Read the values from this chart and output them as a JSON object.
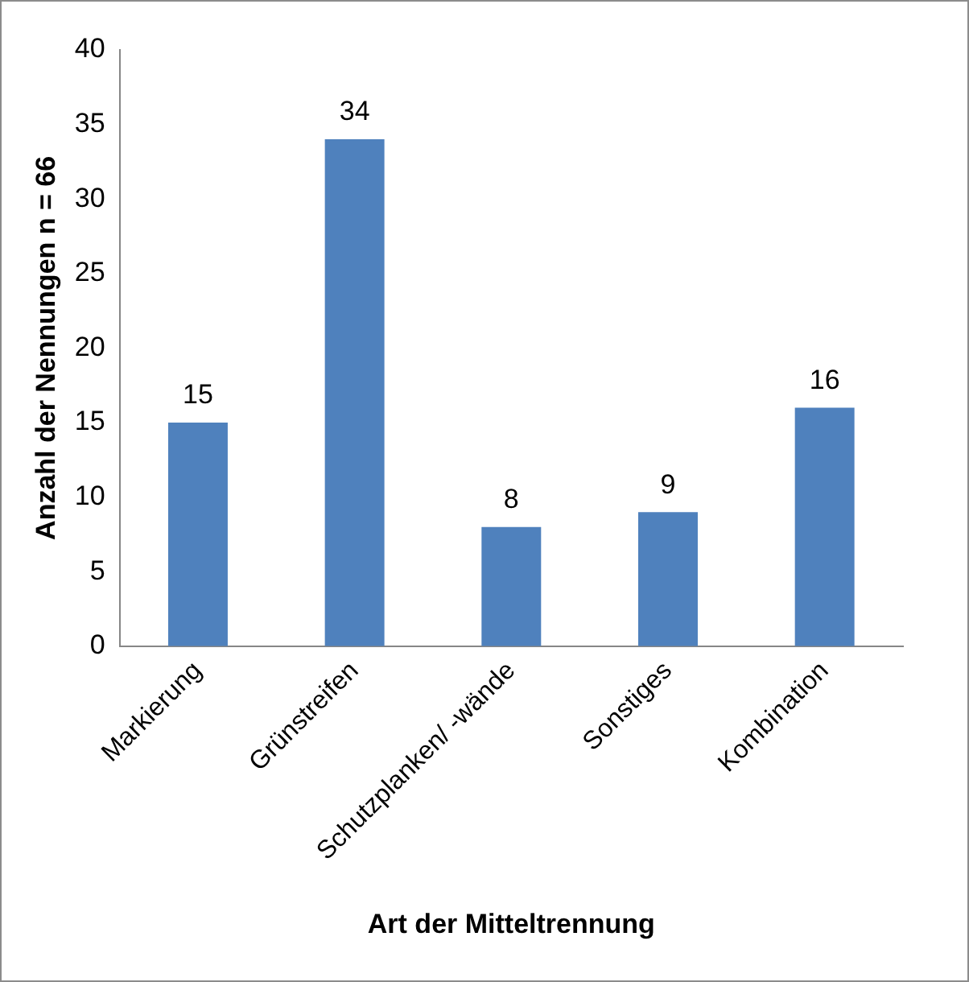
{
  "chart_data": {
    "type": "bar",
    "xlabel": "Art der Mitteltrennung",
    "ylabel": "Anzahl der Nennungen n = 66",
    "categories": [
      "Markierung",
      "Grünstreifen",
      "Schutzplanken/ -wände",
      "Sonstiges",
      "Kombination"
    ],
    "values": [
      15,
      34,
      8,
      9,
      16
    ],
    "color": "#4f81bd",
    "ylim": [
      0,
      40
    ],
    "yticks": [
      0,
      5,
      10,
      15,
      20,
      25,
      30,
      35,
      40
    ],
    "grid": false,
    "legend": false,
    "data_labels": true
  }
}
